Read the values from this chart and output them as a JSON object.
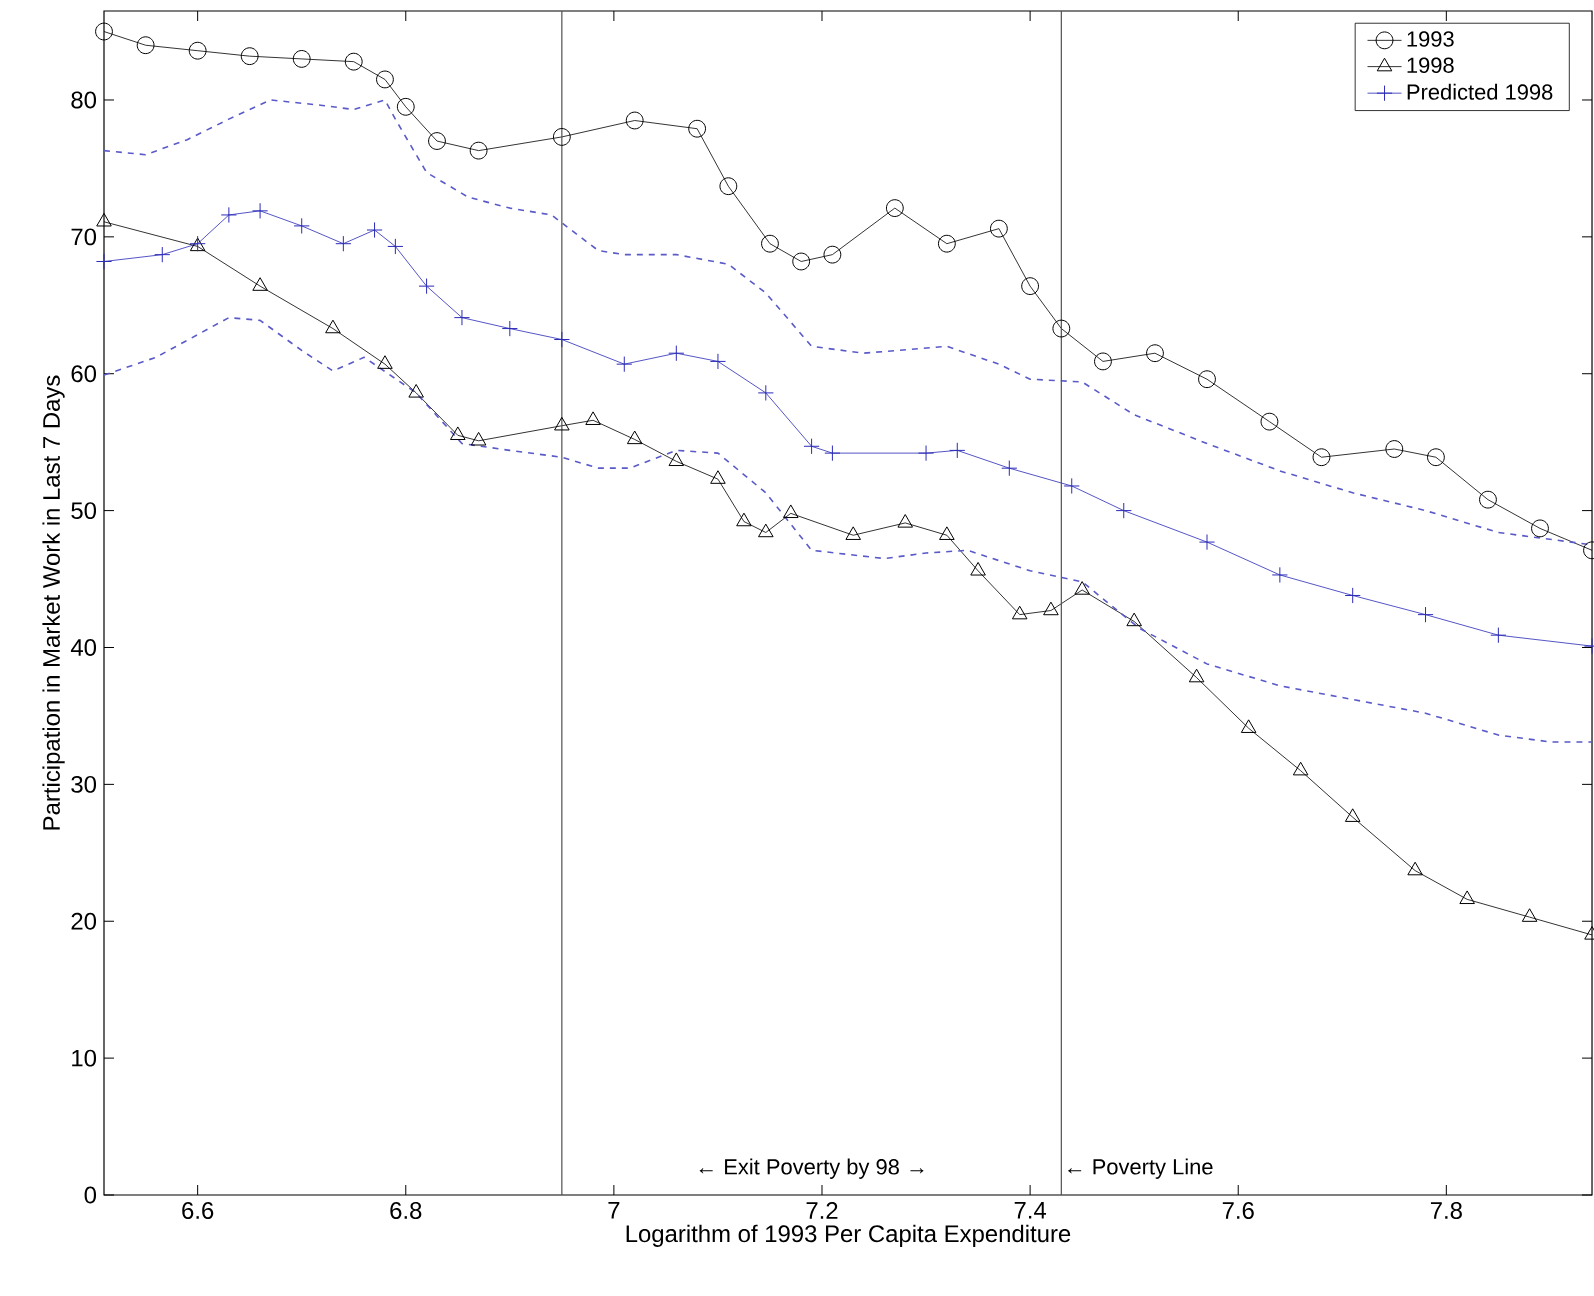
{
  "chart_data": {
    "type": "line",
    "xlabel": "Logarithm of 1993 Per Capita Expenditure",
    "ylabel": "Participation in Market Work in Last 7 Days",
    "xlim": [
      6.51,
      7.94
    ],
    "ylim": [
      0,
      86.5
    ],
    "xticks": [
      6.6,
      6.8,
      7,
      7.2,
      7.4,
      7.6,
      7.8
    ],
    "yticks": [
      0,
      10,
      20,
      30,
      40,
      50,
      60,
      70,
      80
    ],
    "legend": "top right",
    "grid": false,
    "series": [
      {
        "name": "1993",
        "color": "#000000",
        "marker": "circle",
        "line_style": "solid",
        "x": [
          6.51,
          6.55,
          6.6,
          6.65,
          6.7,
          6.75,
          6.78,
          6.8,
          6.83,
          6.87,
          6.95,
          7.02,
          7.08,
          7.11,
          7.15,
          7.18,
          7.21,
          7.27,
          7.32,
          7.37,
          7.4,
          7.43,
          7.47,
          7.52,
          7.57,
          7.63,
          7.68,
          7.75,
          7.79,
          7.84,
          7.89,
          7.94
        ],
        "values": [
          85,
          84,
          83.6,
          83.2,
          83,
          82.8,
          81.5,
          79.5,
          77,
          76.3,
          77.3,
          78.5,
          77.9,
          73.7,
          69.5,
          68.2,
          68.7,
          72.1,
          69.5,
          70.6,
          66.4,
          63.3,
          60.9,
          61.5,
          59.6,
          56.5,
          53.9,
          54.5,
          53.9,
          50.8,
          48.7,
          47.1
        ]
      },
      {
        "name": "1998",
        "color": "#000000",
        "marker": "triangle",
        "line_style": "solid",
        "x": [
          6.51,
          6.6,
          6.66,
          6.73,
          6.78,
          6.81,
          6.85,
          6.87,
          6.95,
          6.98,
          7.02,
          7.06,
          7.1,
          7.125,
          7.146,
          7.17,
          7.23,
          7.28,
          7.32,
          7.35,
          7.39,
          7.42,
          7.45,
          7.5,
          7.56,
          7.61,
          7.66,
          7.71,
          7.77,
          7.82,
          7.88,
          7.94
        ],
        "values": [
          71.1,
          69.3,
          66.4,
          63.3,
          60.7,
          58.6,
          55.5,
          55.1,
          56.2,
          56.6,
          55.2,
          53.6,
          52.3,
          49.2,
          48.4,
          49.8,
          48.2,
          49.1,
          48.2,
          45.6,
          42.4,
          42.7,
          44.2,
          41.9,
          37.8,
          34.1,
          31,
          27.6,
          23.7,
          21.6,
          20.3,
          19
        ]
      },
      {
        "name": "Predicted 1998",
        "color": "#2a2ab8",
        "marker": "cross",
        "line_style": "solid",
        "x": [
          6.51,
          6.566,
          6.6,
          6.63,
          6.66,
          6.7,
          6.74,
          6.77,
          6.79,
          6.82,
          6.854,
          6.9,
          6.95,
          7.01,
          7.06,
          7.1,
          7.146,
          7.19,
          7.21,
          7.3,
          7.33,
          7.38,
          7.44,
          7.49,
          7.57,
          7.64,
          7.71,
          7.78,
          7.85,
          7.94
        ],
        "values": [
          68.2,
          68.7,
          69.5,
          71.6,
          71.9,
          70.8,
          69.5,
          70.5,
          69.3,
          66.4,
          64.1,
          63.3,
          62.5,
          60.7,
          61.5,
          60.9,
          58.6,
          54.7,
          54.2,
          54.2,
          54.4,
          53.1,
          51.8,
          50,
          47.7,
          45.3,
          43.8,
          42.4,
          40.9,
          40.1
        ]
      },
      {
        "color": "#5a5ac8",
        "marker": "none",
        "line_style": "dashed",
        "x": [
          6.51,
          6.55,
          6.59,
          6.63,
          6.67,
          6.72,
          6.75,
          6.78,
          6.79,
          6.82,
          6.86,
          6.9,
          6.94,
          6.985,
          7.01,
          7.06,
          7.11,
          7.146,
          7.19,
          7.24,
          7.32,
          7.37,
          7.4,
          7.45,
          7.5,
          7.57,
          7.64,
          7.71,
          7.78,
          7.85,
          7.92,
          7.94
        ],
        "values": [
          76.3,
          76,
          77.1,
          78.6,
          80,
          79.6,
          79.3,
          80,
          78.6,
          74.7,
          72.9,
          72.1,
          71.6,
          69,
          68.7,
          68.7,
          68,
          65.9,
          62,
          61.5,
          62,
          60.7,
          59.6,
          59.4,
          57,
          54.9,
          52.9,
          51.3,
          50,
          48.4,
          47.7,
          47.5
        ]
      },
      {
        "color": "#5a5ac8",
        "marker": "none",
        "line_style": "dashed",
        "x": [
          6.51,
          6.56,
          6.63,
          6.66,
          6.7,
          6.73,
          6.76,
          6.81,
          6.854,
          6.9,
          6.95,
          6.985,
          7.015,
          7.06,
          7.1,
          7.146,
          7.19,
          7.26,
          7.3,
          7.34,
          7.4,
          7.45,
          7.505,
          7.57,
          7.64,
          7.71,
          7.78,
          7.85,
          7.9,
          7.94
        ],
        "values": [
          59.9,
          61.2,
          64.1,
          63.9,
          61.7,
          60.2,
          61.2,
          58.6,
          54.9,
          54.4,
          53.9,
          53.1,
          53.1,
          54.4,
          54.2,
          51.3,
          47.1,
          46.5,
          46.9,
          47.1,
          45.6,
          44.8,
          41.4,
          38.8,
          37.2,
          36.2,
          35.2,
          33.6,
          33.1,
          33.1
        ]
      }
    ],
    "ref_lines": [
      {
        "axis": "x",
        "value": 6.95,
        "color": "#505050"
      },
      {
        "axis": "x",
        "value": 7.43,
        "label": "← Poverty Line",
        "color": "#505050"
      }
    ],
    "annotations": [
      "← Exit Poverty by 98 →"
    ]
  }
}
